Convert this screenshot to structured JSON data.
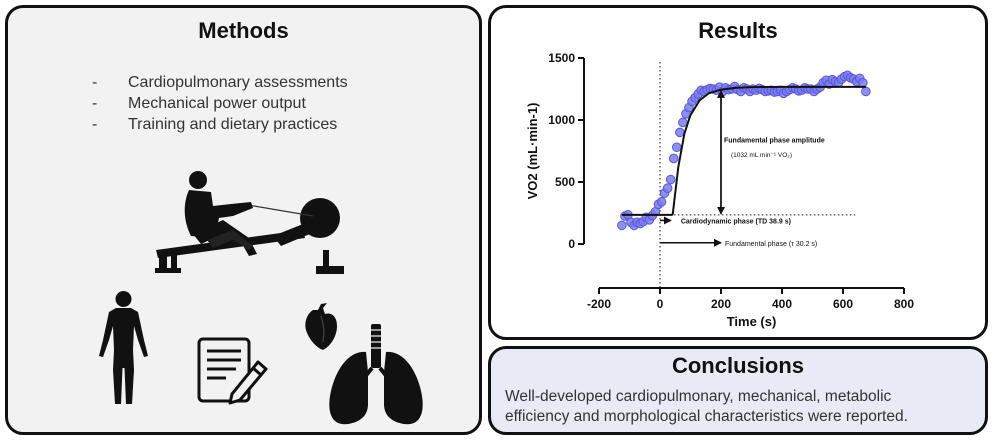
{
  "methods": {
    "title": "Methods",
    "items": [
      {
        "dash": "-",
        "label": "Cardiopulmonary assessments"
      },
      {
        "dash": "-",
        "label": "Mechanical power output"
      },
      {
        "dash": "-",
        "label": "Training and dietary practices"
      }
    ],
    "icons": [
      "rowing-ergometer-icon",
      "human-body-icon",
      "document-pencil-icon",
      "heart-icon",
      "lungs-icon"
    ]
  },
  "results": {
    "title": "Results"
  },
  "conclusions": {
    "title": "Conclusions",
    "text_line1": "Well-developed cardiopulmonary, mechanical, metabolic",
    "text_line2": "efficiency and morphological characteristics were reported."
  },
  "colors": {
    "panel_border": "#111111",
    "methods_bg": "#f2f2f2",
    "conclusions_bg": "#e8eaf6",
    "marker_fill": "#7b7bf0",
    "marker_edge": "#5858d8"
  },
  "chart_data": {
    "type": "scatter",
    "xlabel": "Time (s)",
    "ylabel": "VO2 (mL·min-1)",
    "xlim": [
      -200,
      800
    ],
    "ylim": [
      -250,
      1500
    ],
    "xticks": [
      -200,
      0,
      200,
      400,
      600,
      800
    ],
    "yticks": [
      0,
      500,
      1000,
      1500
    ],
    "grid": false,
    "series": [
      {
        "points": [
          [
            -125,
            150
          ],
          [
            -115,
            225
          ],
          [
            -105,
            235
          ],
          [
            -95,
            175
          ],
          [
            -85,
            150
          ],
          [
            -75,
            175
          ],
          [
            -65,
            165
          ],
          [
            -55,
            180
          ],
          [
            -45,
            215
          ],
          [
            -35,
            195
          ],
          [
            -25,
            230
          ],
          [
            -15,
            260
          ],
          [
            -5,
            320
          ],
          [
            5,
            340
          ],
          [
            15,
            410
          ],
          [
            25,
            450
          ],
          [
            35,
            520
          ],
          [
            45,
            690
          ],
          [
            55,
            780
          ],
          [
            65,
            900
          ],
          [
            75,
            980
          ],
          [
            85,
            1050
          ],
          [
            95,
            1100
          ],
          [
            105,
            1150
          ],
          [
            115,
            1180
          ],
          [
            125,
            1210
          ],
          [
            135,
            1240
          ],
          [
            145,
            1230
          ],
          [
            155,
            1245
          ],
          [
            165,
            1255
          ],
          [
            175,
            1250
          ],
          [
            185,
            1240
          ],
          [
            195,
            1265
          ],
          [
            205,
            1230
          ],
          [
            215,
            1260
          ],
          [
            225,
            1245
          ],
          [
            235,
            1250
          ],
          [
            245,
            1270
          ],
          [
            255,
            1245
          ],
          [
            265,
            1230
          ],
          [
            275,
            1260
          ],
          [
            285,
            1250
          ],
          [
            295,
            1230
          ],
          [
            305,
            1250
          ],
          [
            315,
            1240
          ],
          [
            325,
            1255
          ],
          [
            335,
            1245
          ],
          [
            345,
            1230
          ],
          [
            355,
            1235
          ],
          [
            365,
            1240
          ],
          [
            375,
            1225
          ],
          [
            385,
            1230
          ],
          [
            395,
            1240
          ],
          [
            405,
            1215
          ],
          [
            415,
            1230
          ],
          [
            425,
            1245
          ],
          [
            435,
            1260
          ],
          [
            445,
            1250
          ],
          [
            455,
            1235
          ],
          [
            465,
            1240
          ],
          [
            475,
            1260
          ],
          [
            485,
            1250
          ],
          [
            495,
            1250
          ],
          [
            505,
            1230
          ],
          [
            515,
            1250
          ],
          [
            525,
            1265
          ],
          [
            535,
            1300
          ],
          [
            545,
            1320
          ],
          [
            555,
            1290
          ],
          [
            565,
            1325
          ],
          [
            575,
            1310
          ],
          [
            585,
            1300
          ],
          [
            595,
            1330
          ],
          [
            605,
            1350
          ],
          [
            615,
            1360
          ],
          [
            625,
            1340
          ],
          [
            635,
            1330
          ],
          [
            645,
            1310
          ],
          [
            655,
            1335
          ],
          [
            665,
            1300
          ],
          [
            675,
            1230
          ]
        ]
      }
    ],
    "model_fit": [
      [
        -125,
        235
      ],
      [
        38.9,
        235
      ],
      [
        42,
        245
      ],
      [
        60,
        620
      ],
      [
        80,
        890
      ],
      [
        100,
        1040
      ],
      [
        130,
        1160
      ],
      [
        160,
        1215
      ],
      [
        200,
        1245
      ],
      [
        250,
        1260
      ],
      [
        300,
        1265
      ],
      [
        400,
        1267
      ],
      [
        500,
        1267
      ],
      [
        600,
        1267
      ],
      [
        675,
        1267
      ]
    ],
    "baseline_y": 235,
    "amplitude_top_y": 1267,
    "annotations": {
      "amplitude_label": "Fundamental phase amplitude",
      "amplitude_value": "(1032  mL min⁻¹ VO₂)",
      "cardiodynamic": "Cardiodynamic phase (TD 38.9 s)",
      "fundamental": "Fundamental phase (τ 30.2 s)"
    }
  }
}
